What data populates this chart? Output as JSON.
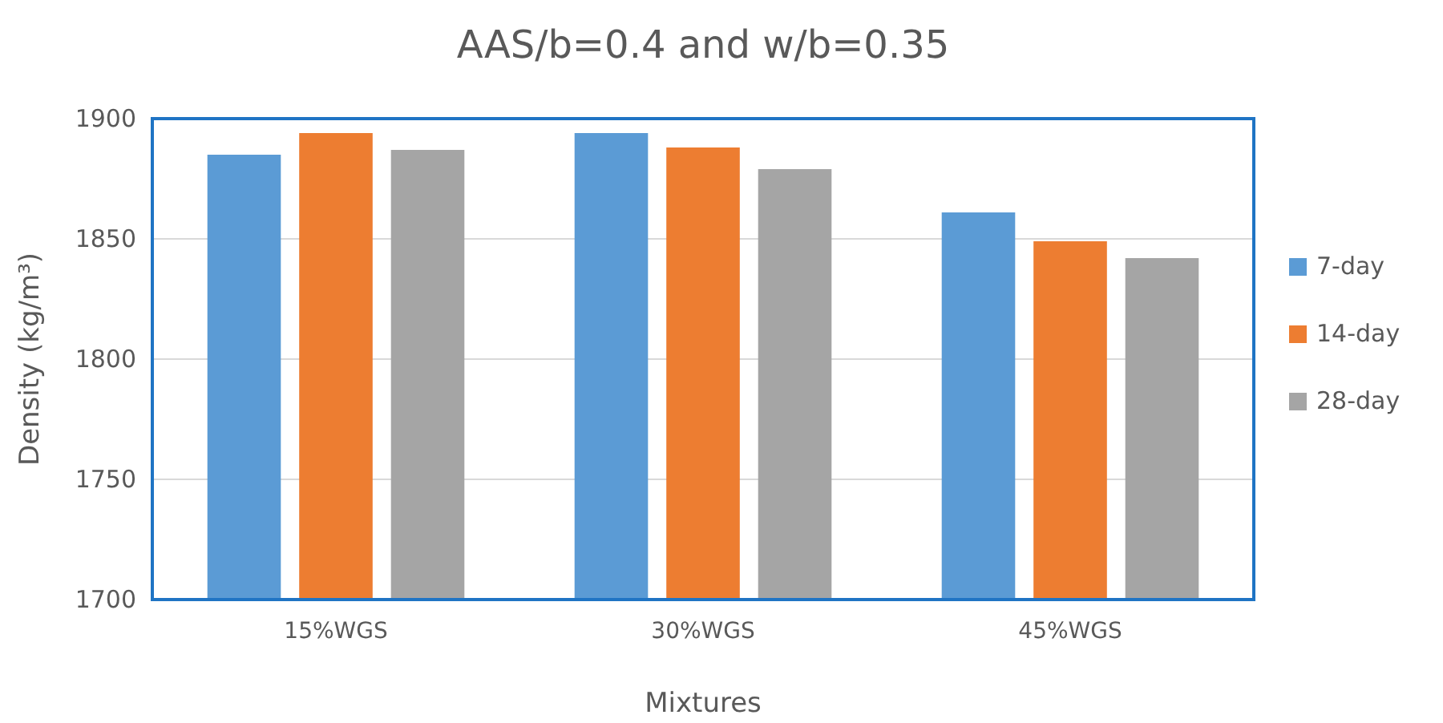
{
  "chart_data": {
    "type": "bar",
    "title": "AAS/b=0.4 and w/b=0.35",
    "xlabel": "Mixtures",
    "ylabel": "Density (kg/m³)",
    "categories": [
      "15%WGS",
      "30%WGS",
      "45%WGS"
    ],
    "series": [
      {
        "name": "7-day",
        "color": "#5b9bd5",
        "values": [
          1885,
          1894,
          1861
        ]
      },
      {
        "name": "14-day",
        "color": "#ed7d31",
        "values": [
          1894,
          1888,
          1849
        ]
      },
      {
        "name": "28-day",
        "color": "#a5a5a5",
        "values": [
          1887,
          1879,
          1842
        ]
      }
    ],
    "ylim": [
      1700,
      1900
    ],
    "yticks": [
      1700,
      1750,
      1800,
      1850,
      1900
    ],
    "grid": "y",
    "legend": "right"
  }
}
